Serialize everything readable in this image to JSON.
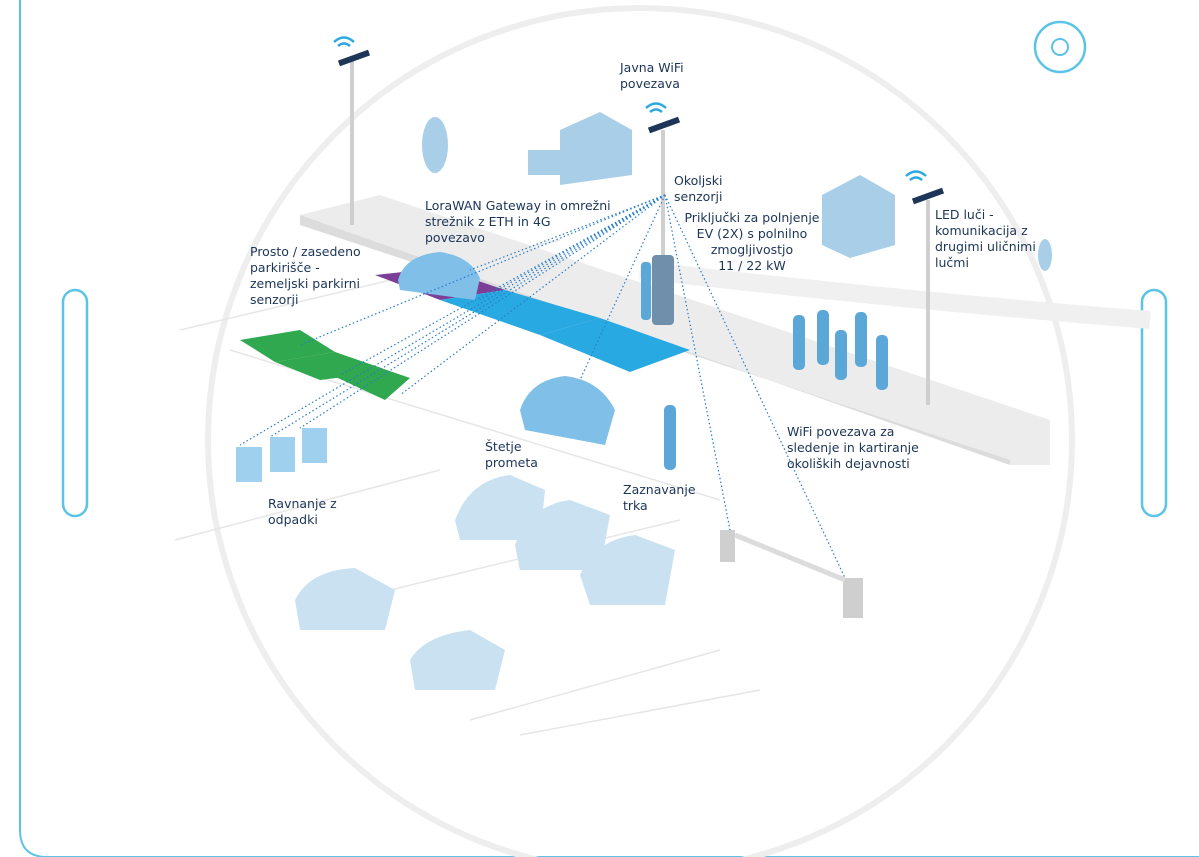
{
  "labels": [
    {
      "lines": [
        "Javna WiFi",
        "povezava"
      ]
    },
    {
      "lines": [
        "Okoljski",
        "senzorji"
      ]
    },
    {
      "lines": [
        "LoraWAN Gateway in omrežni",
        "strežnik z ETH in 4G",
        "povezavo"
      ]
    },
    {
      "lines": [
        "Priključki za polnjenje",
        "EV (2X) s polnilno",
        "zmogljivostjo",
        "11 / 22 kW"
      ]
    },
    {
      "lines": [
        "LED luči -",
        "komunikacija z",
        "drugimi uličnimi",
        "lučmi"
      ]
    },
    {
      "lines": [
        "Prosto / zasedeno",
        "parkirišče -",
        "zemeljski parkirni",
        "senzorji"
      ]
    },
    {
      "lines": [
        "Štetje",
        "prometa"
      ]
    },
    {
      "lines": [
        "WiFi povezava za",
        "sledenje in kartiranje",
        "okoliških dejavnosti"
      ]
    },
    {
      "lines": [
        "Zaznavanje",
        "trka"
      ]
    },
    {
      "lines": [
        "Ravnanje z",
        "odpadki"
      ]
    }
  ]
}
